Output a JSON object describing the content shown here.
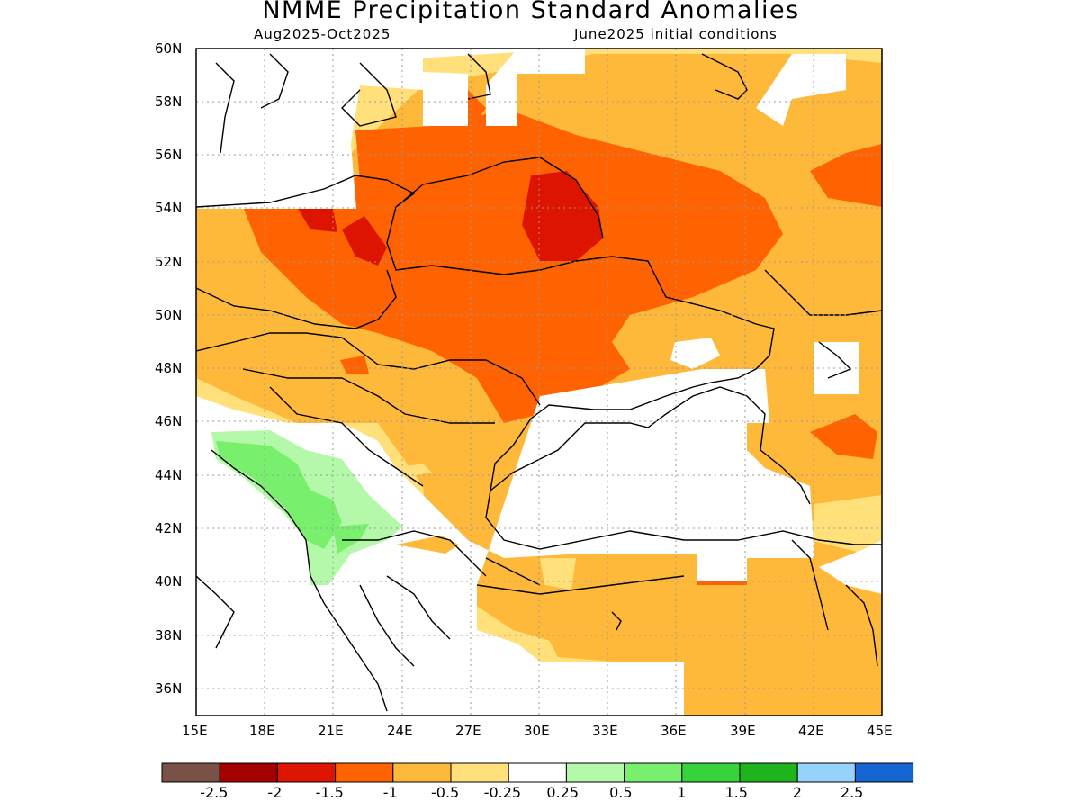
{
  "header": {
    "title": "NMME Precipitation Standard Anomalies",
    "period": "Aug2025-Oct2025",
    "init": "June2025 initial conditions"
  },
  "axes": {
    "lat_labels": [
      "60N",
      "58N",
      "56N",
      "54N",
      "52N",
      "50N",
      "48N",
      "46N",
      "44N",
      "42N",
      "40N",
      "38N",
      "36N"
    ],
    "lon_labels": [
      "15E",
      "18E",
      "21E",
      "24E",
      "27E",
      "30E",
      "33E",
      "36E",
      "39E",
      "42E",
      "45E"
    ],
    "lat_range": [
      35,
      60
    ],
    "lon_range": [
      15,
      45
    ],
    "grid": "dotted"
  },
  "colorbar": {
    "colors": [
      "#7a5147",
      "#a50000",
      "#dd1500",
      "#ff6200",
      "#ffb93a",
      "#ffe07a",
      "#ffffff",
      "#b4f9a9",
      "#78f06e",
      "#37d23c",
      "#1eb41e",
      "#96d2fa",
      "#1464d2"
    ],
    "labels": [
      "-2.5",
      "-2",
      "-1.5",
      "-1",
      "-0.5",
      "-0.25",
      "0.25",
      "0.5",
      "1",
      "1.5",
      "2",
      "2.5"
    ]
  }
}
